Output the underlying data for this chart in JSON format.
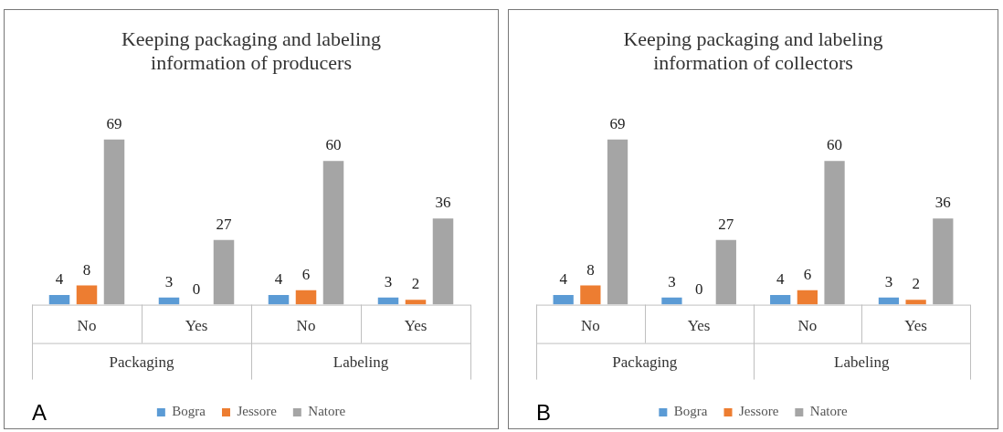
{
  "chart_data": [
    {
      "type": "bar",
      "title": "Keeping packaging and labeling information of producers",
      "categories": [
        "No",
        "Yes",
        "No",
        "Yes"
      ],
      "series": [
        {
          "name": "Bogra",
          "color": "#5b9bd5",
          "values": [
            4,
            3,
            4,
            3
          ]
        },
        {
          "name": "Jessore",
          "color": "#ed7d31",
          "values": [
            8,
            0,
            6,
            2
          ]
        },
        {
          "name": "Natore",
          "color": "#a5a5a5",
          "values": [
            69,
            27,
            60,
            36
          ]
        }
      ],
      "data_labels": true,
      "legend": "bottom",
      "grid": false,
      "tick_labels": "x",
      "annotations": [
        "Packaging",
        "Labeling",
        "A"
      ]
    },
    {
      "type": "bar",
      "title": "Keeping packaging and labeling information of collectors",
      "categories": [
        "No",
        "Yes",
        "No",
        "Yes"
      ],
      "series": [
        {
          "name": "Bogra",
          "color": "#5b9bd5",
          "values": [
            4,
            3,
            4,
            3
          ]
        },
        {
          "name": "Jessore",
          "color": "#ed7d31",
          "values": [
            8,
            0,
            6,
            2
          ]
        },
        {
          "name": "Natore",
          "color": "#a5a5a5",
          "values": [
            69,
            27,
            60,
            36
          ]
        }
      ],
      "data_labels": true,
      "legend": "bottom",
      "grid": false,
      "tick_labels": "x",
      "annotations": [
        "Packaging",
        "Labeling",
        "B"
      ]
    }
  ]
}
